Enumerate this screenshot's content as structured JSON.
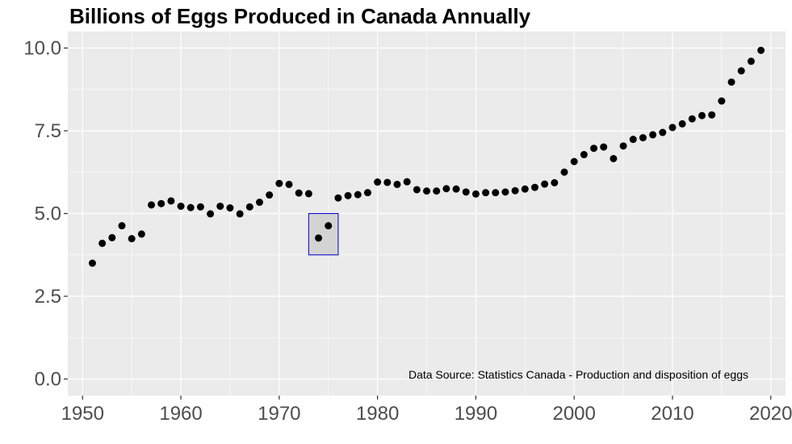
{
  "chart_data": {
    "type": "scatter",
    "title": "Billions of Eggs Produced in Canada Annually",
    "xlabel": "",
    "ylabel": "",
    "xlim": [
      1948.5,
      2021.5
    ],
    "ylim": [
      -0.5,
      10.5
    ],
    "x_ticks": [
      1950,
      1960,
      1970,
      1980,
      1990,
      2000,
      2010,
      2020
    ],
    "y_ticks": [
      0.0,
      2.5,
      5.0,
      7.5,
      10.0
    ],
    "y_tick_labels": [
      "0.0",
      "2.5",
      "5.0",
      "7.5",
      "10.0"
    ],
    "grid": true,
    "legend": "none",
    "caption": "Data Source: Statistics Canada - Production and disposition of eggs",
    "colors": {
      "panel": "#ebebeb",
      "grid": "#ffffff",
      "point": "#000000",
      "highlight_fill": "#d3d3d3",
      "highlight_border": "#0000cd",
      "tick_text": "#4d4d4d",
      "tick_mark": "#333333"
    },
    "highlight": {
      "x_range": [
        1973,
        1976
      ],
      "y_range": [
        3.75,
        5.0
      ]
    },
    "points": [
      {
        "x": 1951,
        "y": 3.5
      },
      {
        "x": 1952,
        "y": 4.1
      },
      {
        "x": 1953,
        "y": 4.27
      },
      {
        "x": 1954,
        "y": 4.63
      },
      {
        "x": 1955,
        "y": 4.24
      },
      {
        "x": 1956,
        "y": 4.38
      },
      {
        "x": 1957,
        "y": 5.26
      },
      {
        "x": 1958,
        "y": 5.3
      },
      {
        "x": 1959,
        "y": 5.38
      },
      {
        "x": 1960,
        "y": 5.22
      },
      {
        "x": 1961,
        "y": 5.18
      },
      {
        "x": 1962,
        "y": 5.2
      },
      {
        "x": 1963,
        "y": 4.99
      },
      {
        "x": 1964,
        "y": 5.22
      },
      {
        "x": 1965,
        "y": 5.17
      },
      {
        "x": 1966,
        "y": 4.99
      },
      {
        "x": 1967,
        "y": 5.2
      },
      {
        "x": 1968,
        "y": 5.34
      },
      {
        "x": 1969,
        "y": 5.56
      },
      {
        "x": 1970,
        "y": 5.91
      },
      {
        "x": 1971,
        "y": 5.88
      },
      {
        "x": 1972,
        "y": 5.62
      },
      {
        "x": 1973,
        "y": 5.6
      },
      {
        "x": 1974,
        "y": 4.26
      },
      {
        "x": 1975,
        "y": 4.63
      },
      {
        "x": 1976,
        "y": 5.47
      },
      {
        "x": 1977,
        "y": 5.54
      },
      {
        "x": 1978,
        "y": 5.57
      },
      {
        "x": 1979,
        "y": 5.63
      },
      {
        "x": 1980,
        "y": 5.95
      },
      {
        "x": 1981,
        "y": 5.94
      },
      {
        "x": 1982,
        "y": 5.88
      },
      {
        "x": 1983,
        "y": 5.96
      },
      {
        "x": 1984,
        "y": 5.72
      },
      {
        "x": 1985,
        "y": 5.68
      },
      {
        "x": 1986,
        "y": 5.68
      },
      {
        "x": 1987,
        "y": 5.75
      },
      {
        "x": 1988,
        "y": 5.74
      },
      {
        "x": 1989,
        "y": 5.65
      },
      {
        "x": 1990,
        "y": 5.59
      },
      {
        "x": 1991,
        "y": 5.63
      },
      {
        "x": 1992,
        "y": 5.63
      },
      {
        "x": 1993,
        "y": 5.65
      },
      {
        "x": 1994,
        "y": 5.69
      },
      {
        "x": 1995,
        "y": 5.74
      },
      {
        "x": 1996,
        "y": 5.79
      },
      {
        "x": 1997,
        "y": 5.89
      },
      {
        "x": 1998,
        "y": 5.93
      },
      {
        "x": 1999,
        "y": 6.25
      },
      {
        "x": 2000,
        "y": 6.57
      },
      {
        "x": 2001,
        "y": 6.78
      },
      {
        "x": 2002,
        "y": 6.97
      },
      {
        "x": 2003,
        "y": 7.01
      },
      {
        "x": 2004,
        "y": 6.66
      },
      {
        "x": 2005,
        "y": 7.04
      },
      {
        "x": 2006,
        "y": 7.24
      },
      {
        "x": 2007,
        "y": 7.29
      },
      {
        "x": 2008,
        "y": 7.38
      },
      {
        "x": 2009,
        "y": 7.45
      },
      {
        "x": 2010,
        "y": 7.6
      },
      {
        "x": 2011,
        "y": 7.71
      },
      {
        "x": 2012,
        "y": 7.86
      },
      {
        "x": 2013,
        "y": 7.96
      },
      {
        "x": 2014,
        "y": 7.98
      },
      {
        "x": 2015,
        "y": 8.4
      },
      {
        "x": 2016,
        "y": 8.97
      },
      {
        "x": 2017,
        "y": 9.31
      },
      {
        "x": 2018,
        "y": 9.6
      },
      {
        "x": 2019,
        "y": 9.93
      }
    ]
  }
}
